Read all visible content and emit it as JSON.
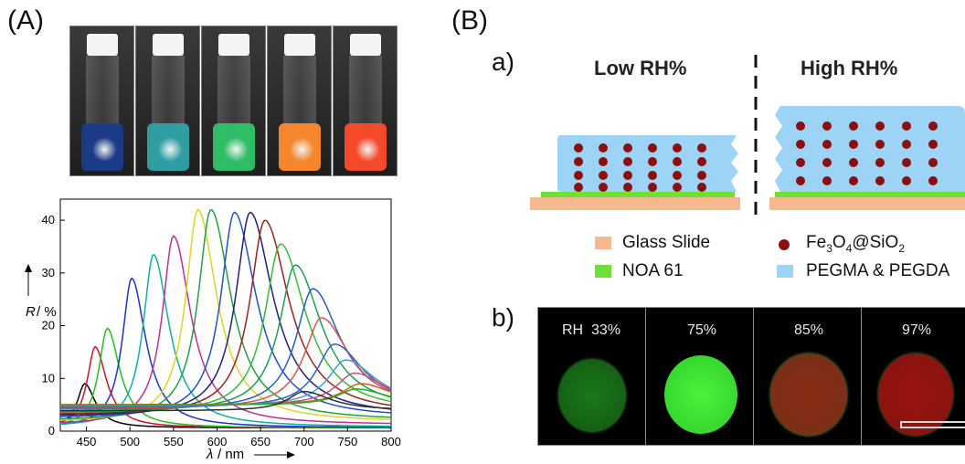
{
  "panel_a": {
    "label": "(A)",
    "vial_colors": [
      "#1a3a8a",
      "#2ea3a8",
      "#2ec468",
      "#ff8a2a",
      "#ff4a2a"
    ]
  },
  "panel_b": {
    "label": "(B)",
    "sub_a": "a)",
    "sub_b": "b)",
    "low_header": "Low RH%",
    "high_header": "High RH%",
    "legend": {
      "glass": "Glass Slide",
      "noa": "NOA 61",
      "fe_main": "Fe",
      "fe_s1": "3",
      "fe_o": "O",
      "fe_s2": "4",
      "fe_si": "@SiO",
      "fe_s3": "2",
      "peg": "PEGMA & PEGDA"
    },
    "colors": {
      "glass": "#f6b98e",
      "noa": "#6ee037",
      "particle": "#8b0f0f",
      "hydrogel": "#9dd3f5"
    },
    "rh_prefix": "RH",
    "rh_values": [
      "33%",
      "75%",
      "85%",
      "97%"
    ]
  },
  "chart_data": {
    "type": "line",
    "xlabel_var": "λ",
    "xlabel_unit": "/ nm",
    "ylabel_var": "R",
    "ylabel_unit": "/ %",
    "xlim": [
      420,
      800
    ],
    "ylim": [
      0,
      44
    ],
    "xticks": [
      "450",
      "500",
      "550",
      "600",
      "650",
      "700",
      "750",
      "800"
    ],
    "yticks": [
      "0",
      "10",
      "20",
      "30",
      "40"
    ],
    "series": [
      {
        "peak_nm": 448,
        "peak_R": 9,
        "color": "#000000"
      },
      {
        "peak_nm": 460,
        "peak_R": 16,
        "color": "#d01030"
      },
      {
        "peak_nm": 474,
        "peak_R": 19.5,
        "color": "#20c020"
      },
      {
        "peak_nm": 502,
        "peak_R": 29,
        "color": "#2030d0"
      },
      {
        "peak_nm": 527,
        "peak_R": 33.5,
        "color": "#10b0a0"
      },
      {
        "peak_nm": 550,
        "peak_R": 37,
        "color": "#c03090"
      },
      {
        "peak_nm": 578,
        "peak_R": 42,
        "color": "#d8d820"
      },
      {
        "peak_nm": 593,
        "peak_R": 42,
        "color": "#20a040"
      },
      {
        "peak_nm": 620,
        "peak_R": 41.5,
        "color": "#2050d0"
      },
      {
        "peak_nm": 638,
        "peak_R": 41.5,
        "color": "#202080"
      },
      {
        "peak_nm": 655,
        "peak_R": 40,
        "color": "#a02020"
      },
      {
        "peak_nm": 673,
        "peak_R": 35.5,
        "color": "#30c030"
      },
      {
        "peak_nm": 690,
        "peak_R": 31.5,
        "color": "#18a058"
      },
      {
        "peak_nm": 710,
        "peak_R": 27,
        "color": "#2060c0"
      },
      {
        "peak_nm": 720,
        "peak_R": 21.5,
        "color": "#e05050"
      },
      {
        "peak_nm": 735,
        "peak_R": 16.5,
        "color": "#3060c0"
      },
      {
        "peak_nm": 748,
        "peak_R": 13.5,
        "color": "#40a0d0"
      },
      {
        "peak_nm": 758,
        "peak_R": 11,
        "color": "#c05080"
      },
      {
        "peak_nm": 765,
        "peak_R": 9,
        "color": "#d06020"
      },
      {
        "peak_nm": 760,
        "peak_R": 8,
        "color": "#20b020"
      },
      {
        "peak_nm": 700,
        "peak_R": 7.5,
        "color": "#303030"
      }
    ]
  }
}
